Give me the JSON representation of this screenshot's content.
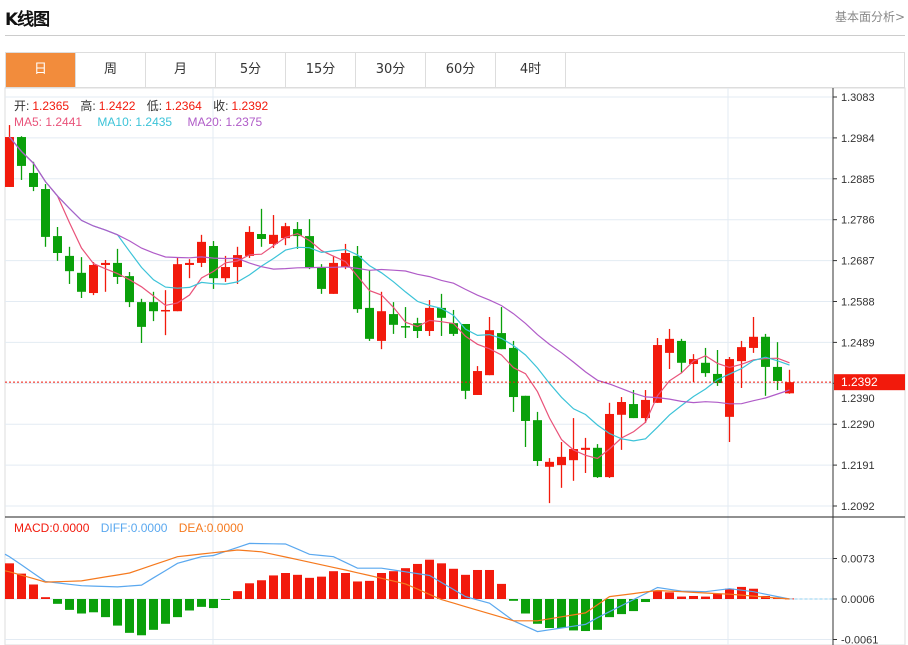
{
  "header": {
    "title": "K线图",
    "link": "基本面分析>"
  },
  "tabs": [
    {
      "label": "日",
      "active": true
    },
    {
      "label": "周"
    },
    {
      "label": "月"
    },
    {
      "label": "5分"
    },
    {
      "label": "15分"
    },
    {
      "label": "30分"
    },
    {
      "label": "60分"
    },
    {
      "label": "4时"
    }
  ],
  "ohlc_info": {
    "open_label": "开:",
    "open": "1.2365",
    "high_label": "高:",
    "high": "1.2422",
    "low_label": "低:",
    "low": "1.2364",
    "close_label": "收:",
    "close": "1.2392"
  },
  "ma_info": {
    "ma5": "MA5: 1.2441",
    "ma10": "MA10: 1.2435",
    "ma20": "MA20: 1.2375"
  },
  "macd_info": {
    "macd": "MACD:0.0000",
    "diff": "DIFF:0.0000",
    "dea": "DEA:0.0000"
  },
  "colors": {
    "up": "#f21a0c",
    "down": "#0aa00a",
    "ma5": "#e9537a",
    "ma10": "#3cc3d8",
    "ma20": "#b05cc8",
    "diff": "#5aa8ef",
    "dea": "#f5791e",
    "accent": "#f28c3c"
  },
  "chart_data": {
    "type": "candlestick",
    "current_price": "1.2392",
    "price_ticks": [
      "1.3083",
      "1.2984",
      "1.2885",
      "1.2786",
      "1.2687",
      "1.2588",
      "1.2489",
      "1.2390",
      "1.2290",
      "1.2191",
      "1.2092"
    ],
    "ylim": [
      1.2092,
      1.3083
    ],
    "candles": [
      [
        1.2865,
        1.2986,
        1.3015,
        1.2865
      ],
      [
        1.2986,
        1.2916,
        1.2988,
        1.2882
      ],
      [
        1.2899,
        1.2865,
        1.2926,
        1.2855
      ],
      [
        1.286,
        1.2744,
        1.2872,
        1.272
      ],
      [
        1.2746,
        1.2705,
        1.2768,
        1.2686
      ],
      [
        1.2698,
        1.2661,
        1.272,
        1.263
      ],
      [
        1.2657,
        1.2611,
        1.2695,
        1.2596
      ],
      [
        1.2608,
        1.2676,
        1.2683,
        1.2603
      ],
      [
        1.2676,
        1.2681,
        1.2688,
        1.2611
      ],
      [
        1.2681,
        1.2647,
        1.2715,
        1.263
      ],
      [
        1.2649,
        1.2586,
        1.2659,
        1.2574
      ],
      [
        1.2586,
        1.2526,
        1.2594,
        1.2487
      ],
      [
        1.2586,
        1.2564,
        1.2611,
        1.254
      ],
      [
        1.2564,
        1.2567,
        1.2615,
        1.2506
      ],
      [
        1.2564,
        1.2678,
        1.2693,
        1.2564
      ],
      [
        1.2676,
        1.2681,
        1.269,
        1.2644
      ],
      [
        1.2681,
        1.2732,
        1.2749,
        1.2671
      ],
      [
        1.2722,
        1.2644,
        1.2734,
        1.2618
      ],
      [
        1.2644,
        1.2671,
        1.2698,
        1.2635
      ],
      [
        1.2671,
        1.27,
        1.272,
        1.263
      ],
      [
        1.2698,
        1.2756,
        1.277,
        1.2693
      ],
      [
        1.2751,
        1.2739,
        1.2812,
        1.272
      ],
      [
        1.2727,
        1.2749,
        1.2797,
        1.2717
      ],
      [
        1.2741,
        1.277,
        1.2778,
        1.2724
      ],
      [
        1.2763,
        1.2746,
        1.278,
        1.2715
      ],
      [
        1.2746,
        1.2671,
        1.2787,
        1.2666
      ],
      [
        1.2671,
        1.2618,
        1.2678,
        1.2606
      ],
      [
        1.2606,
        1.2681,
        1.2698,
        1.2606
      ],
      [
        1.2671,
        1.2705,
        1.2727,
        1.2666
      ],
      [
        1.2698,
        1.2569,
        1.2722,
        1.256
      ],
      [
        1.2572,
        1.2497,
        1.2664,
        1.2492
      ],
      [
        1.2492,
        1.2564,
        1.2611,
        1.2472
      ],
      [
        1.2557,
        1.2531,
        1.2586,
        1.2509
      ],
      [
        1.2528,
        1.2526,
        1.2574,
        1.2499
      ],
      [
        1.2535,
        1.2516,
        1.2548,
        1.2499
      ],
      [
        1.2516,
        1.2572,
        1.2591,
        1.2504
      ],
      [
        1.2572,
        1.2548,
        1.2606,
        1.2504
      ],
      [
        1.2535,
        1.2509,
        1.2567,
        1.2504
      ],
      [
        1.2533,
        1.2371,
        1.2533,
        1.2351
      ],
      [
        1.2361,
        1.2419,
        1.2431,
        1.2361
      ],
      [
        1.2409,
        1.2518,
        1.255,
        1.2409
      ],
      [
        1.2511,
        1.2472,
        1.2574,
        1.2472
      ],
      [
        1.2475,
        1.2356,
        1.2492,
        1.232
      ],
      [
        1.2359,
        1.2298,
        1.2359,
        1.2235
      ],
      [
        1.23,
        1.2201,
        1.232,
        1.2189
      ],
      [
        1.2187,
        1.2199,
        1.2208,
        1.2099
      ],
      [
        1.2191,
        1.2211,
        1.2247,
        1.2136
      ],
      [
        1.2203,
        1.223,
        1.2305,
        1.2153
      ],
      [
        1.2228,
        1.2233,
        1.2257,
        1.2172
      ],
      [
        1.2233,
        1.2162,
        1.2242,
        1.216
      ],
      [
        1.2162,
        1.2315,
        1.2342,
        1.216
      ],
      [
        1.2313,
        1.2344,
        1.2356,
        1.2228
      ],
      [
        1.2339,
        1.2305,
        1.2373,
        1.2305
      ],
      [
        1.2305,
        1.2349,
        1.2373,
        1.2293
      ],
      [
        1.2342,
        1.2482,
        1.2499,
        1.2342
      ],
      [
        1.2463,
        1.2497,
        1.2521,
        1.2424
      ],
      [
        1.2492,
        1.2439,
        1.2497,
        1.2414
      ],
      [
        1.2436,
        1.2448,
        1.246,
        1.2392
      ],
      [
        1.2439,
        1.2414,
        1.2475,
        1.2405
      ],
      [
        1.2412,
        1.239,
        1.247,
        1.2383
      ],
      [
        1.2308,
        1.2448,
        1.2453,
        1.2247
      ],
      [
        1.2443,
        1.2477,
        1.2492,
        1.2378
      ],
      [
        1.2475,
        1.2502,
        1.255,
        1.2463
      ],
      [
        1.2502,
        1.2429,
        1.2509,
        1.2359
      ],
      [
        1.2429,
        1.2395,
        1.2489,
        1.2373
      ],
      [
        1.2365,
        1.2392,
        1.2422,
        1.2364
      ]
    ],
    "macd": {
      "ticks": [
        "0.0073",
        "0.0006",
        "-0.0061"
      ],
      "histogram": [
        0.0059,
        0.0042,
        0.0024,
        0.0003,
        -0.0008,
        -0.0018,
        -0.0024,
        -0.0022,
        -0.003,
        -0.0044,
        -0.0056,
        -0.006,
        -0.0051,
        -0.0041,
        -0.003,
        -0.0019,
        -0.0013,
        -0.0015,
        -0.0001,
        0.0013,
        0.0026,
        0.0031,
        0.0039,
        0.0043,
        0.004,
        0.0035,
        0.0037,
        0.0046,
        0.0043,
        0.0029,
        0.003,
        0.0043,
        0.0046,
        0.0051,
        0.0058,
        0.0065,
        0.0059,
        0.005,
        0.004,
        0.0048,
        0.0048,
        0.0025,
        -0.0003,
        -0.0024,
        -0.0041,
        -0.0048,
        -0.0048,
        -0.0052,
        -0.0053,
        -0.0051,
        -0.003,
        -0.0025,
        -0.002,
        -0.0005,
        0.0013,
        0.0011,
        0.0004,
        0.0005,
        0.0004,
        0.0009,
        0.0017,
        0.002,
        0.0017,
        0.0005,
        0.0002,
        0.0001
      ],
      "diff": [
        [
          0,
          0.007
        ],
        [
          3,
          0.0029
        ],
        [
          6,
          0.0022
        ],
        [
          9,
          0.002
        ],
        [
          11,
          0.0023
        ],
        [
          14,
          0.0059
        ],
        [
          16,
          0.007
        ],
        [
          17,
          0.0072
        ],
        [
          20,
          0.0092
        ],
        [
          23,
          0.0091
        ],
        [
          25,
          0.0074
        ],
        [
          27,
          0.007
        ],
        [
          29,
          0.0051
        ],
        [
          31,
          0.0051
        ],
        [
          35,
          0.0039
        ],
        [
          38,
          0.0004
        ],
        [
          40,
          -0.0007
        ],
        [
          42,
          -0.0036
        ],
        [
          44,
          -0.0054
        ],
        [
          48,
          -0.0042
        ],
        [
          49,
          -0.0031
        ],
        [
          52,
          -0.0001
        ],
        [
          54,
          0.0019
        ],
        [
          56,
          0.0013
        ],
        [
          58,
          0.0012
        ],
        [
          60,
          0.0017
        ],
        [
          62,
          0.0012
        ],
        [
          65,
          0.0
        ]
      ],
      "dea": [
        [
          0,
          0.0045
        ],
        [
          3,
          0.0028
        ],
        [
          6,
          0.003
        ],
        [
          10,
          0.0043
        ],
        [
          14,
          0.007
        ],
        [
          19,
          0.0081
        ],
        [
          21,
          0.0078
        ],
        [
          28,
          0.0048
        ],
        [
          33,
          0.0025
        ],
        [
          36,
          -0.0001
        ],
        [
          42,
          -0.0036
        ],
        [
          44,
          -0.0036
        ],
        [
          48,
          -0.0023
        ],
        [
          50,
          0.0004
        ],
        [
          54,
          0.0014
        ],
        [
          60,
          0.0008
        ],
        [
          65,
          0.0
        ]
      ]
    }
  }
}
